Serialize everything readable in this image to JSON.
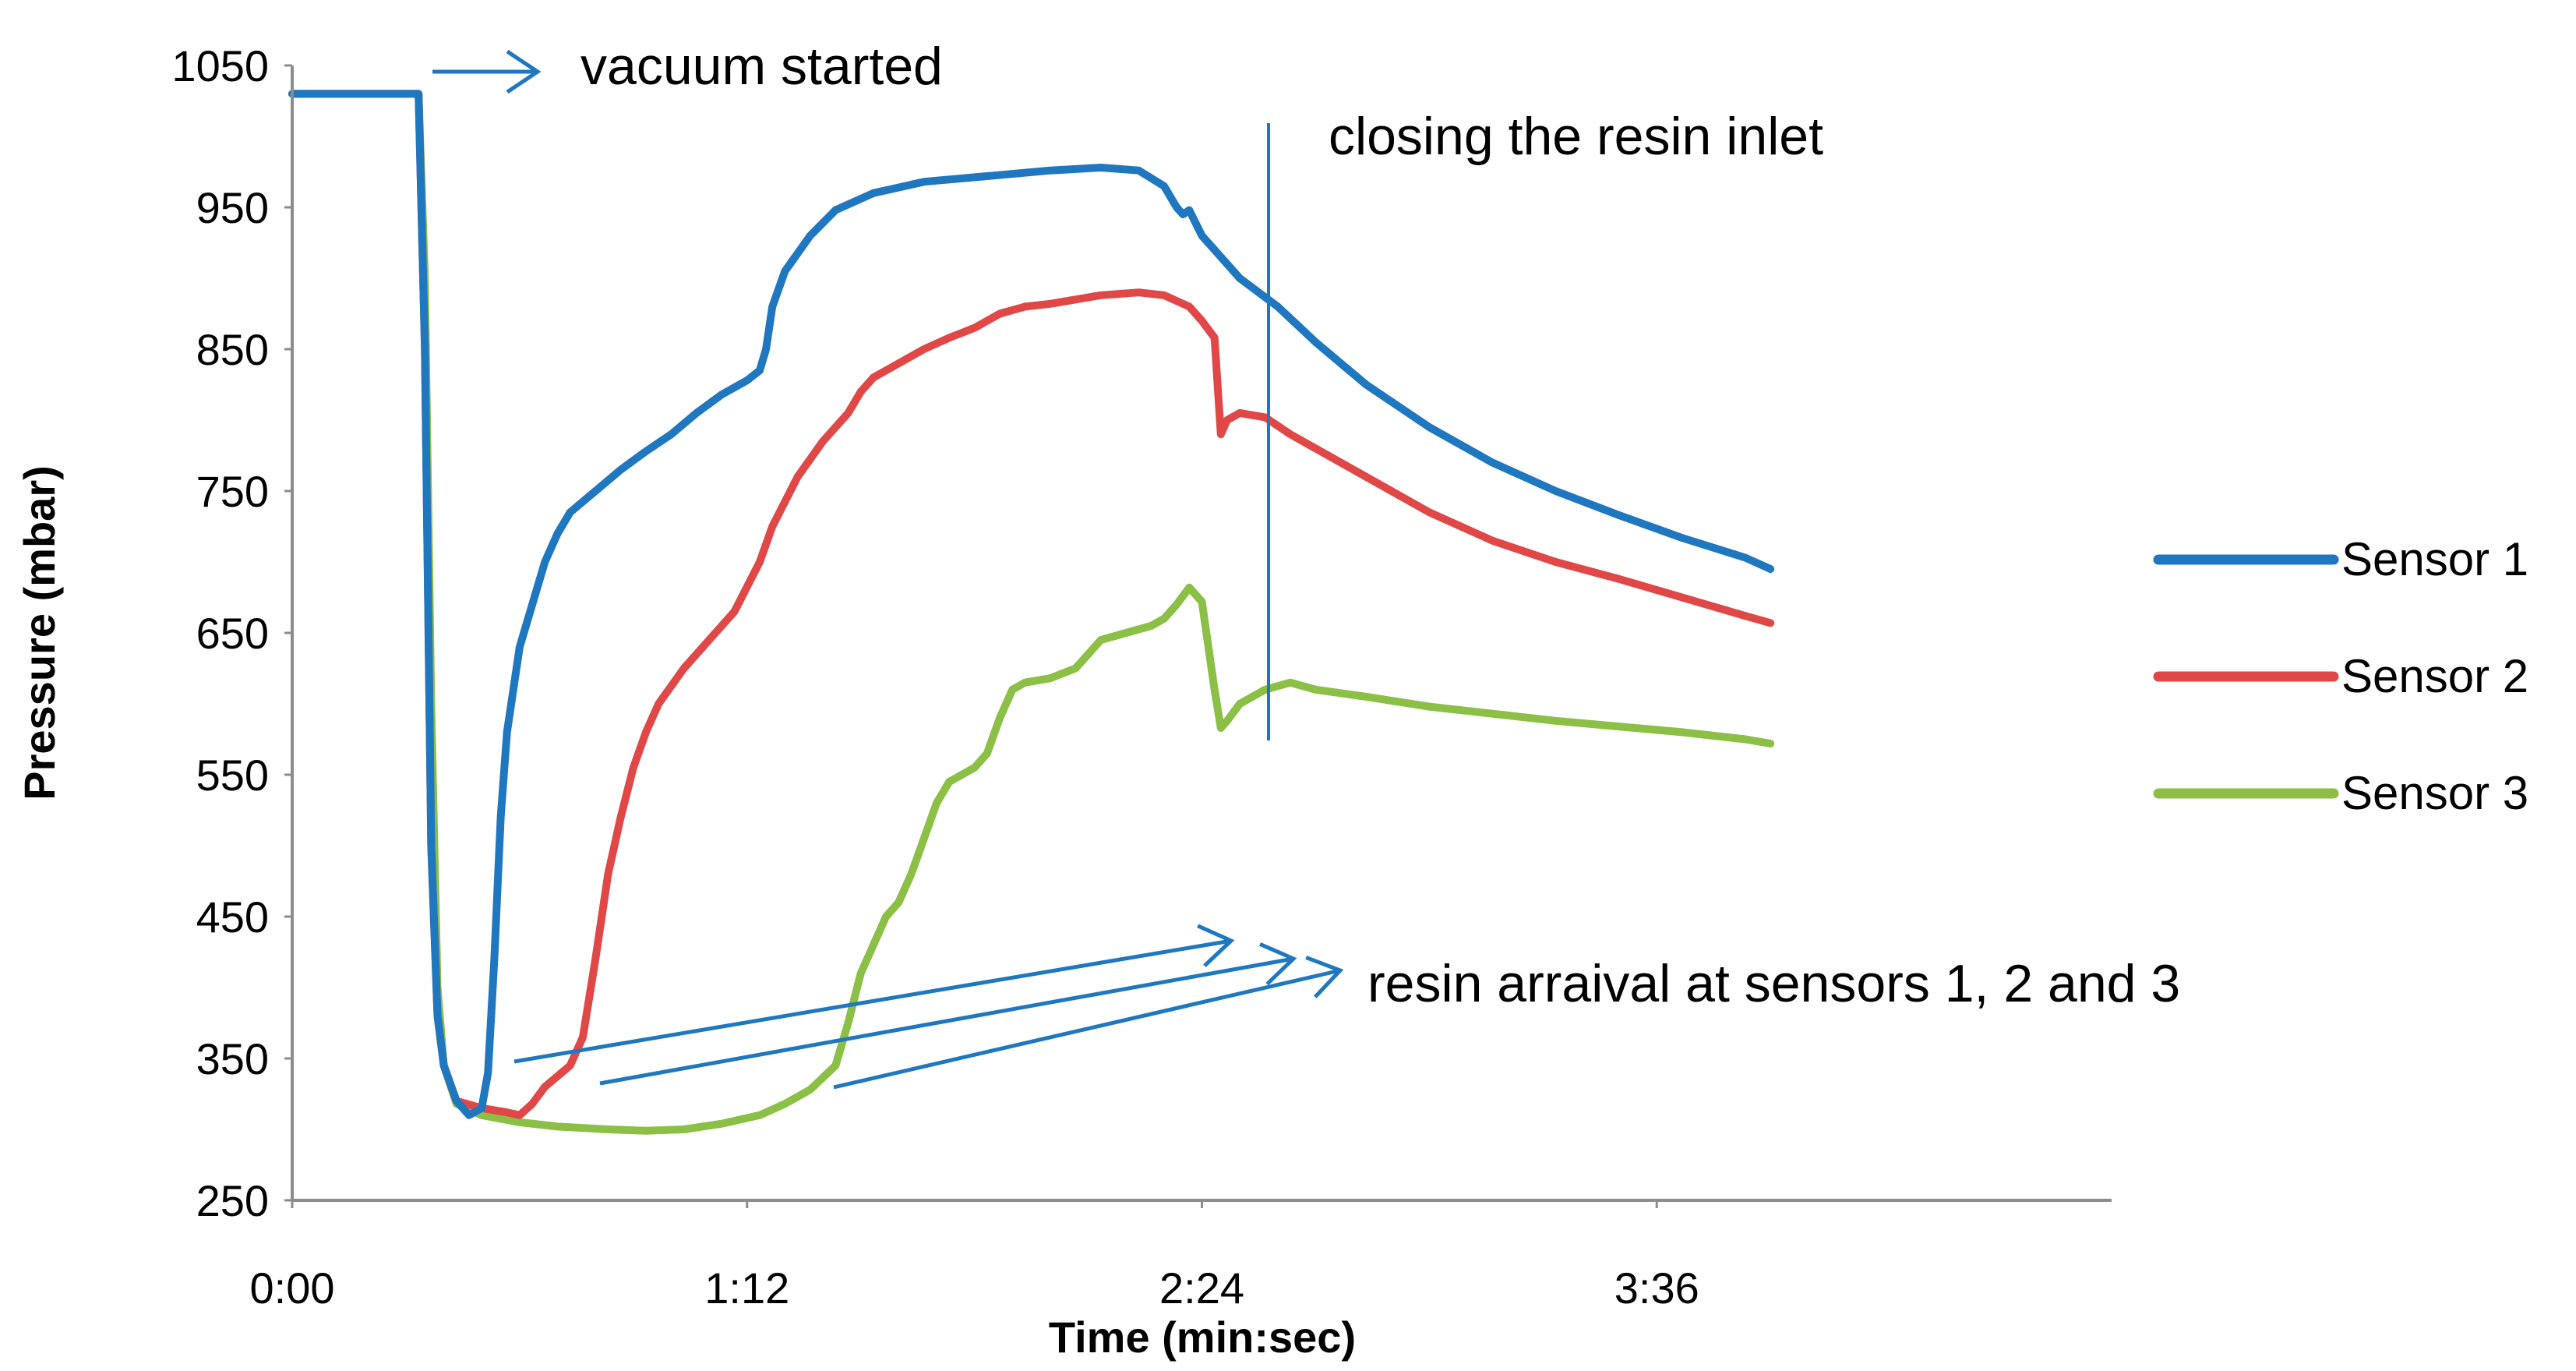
{
  "chart_data": {
    "type": "line",
    "title": "",
    "xlabel": "Time (min:sec)",
    "ylabel": "Pressure (mbar)",
    "xunit": "seconds",
    "xlim": [
      0,
      288
    ],
    "ylim": [
      250,
      1050
    ],
    "yticks": [
      250,
      350,
      450,
      550,
      650,
      750,
      850,
      950,
      1050
    ],
    "xticks": [
      {
        "value": 0,
        "label": "0:00"
      },
      {
        "value": 72,
        "label": "1:12"
      },
      {
        "value": 144,
        "label": "2:24"
      },
      {
        "value": 216,
        "label": "3:36"
      }
    ],
    "grid": false,
    "legend_position": "right",
    "series": [
      {
        "name": "Sensor 1",
        "color": "#1F77C0",
        "points": [
          [
            0,
            1030
          ],
          [
            20,
            1030
          ],
          [
            21,
            850
          ],
          [
            22,
            500
          ],
          [
            23,
            380
          ],
          [
            24,
            345
          ],
          [
            26,
            320
          ],
          [
            28,
            310
          ],
          [
            30,
            315
          ],
          [
            31,
            340
          ],
          [
            32,
            420
          ],
          [
            33,
            520
          ],
          [
            34,
            580
          ],
          [
            35,
            610
          ],
          [
            36,
            640
          ],
          [
            38,
            670
          ],
          [
            40,
            700
          ],
          [
            42,
            720
          ],
          [
            44,
            735
          ],
          [
            48,
            750
          ],
          [
            52,
            765
          ],
          [
            56,
            778
          ],
          [
            60,
            790
          ],
          [
            64,
            805
          ],
          [
            68,
            818
          ],
          [
            72,
            828
          ],
          [
            74,
            835
          ],
          [
            75,
            850
          ],
          [
            76,
            880
          ],
          [
            78,
            905
          ],
          [
            82,
            930
          ],
          [
            86,
            948
          ],
          [
            92,
            960
          ],
          [
            100,
            968
          ],
          [
            110,
            972
          ],
          [
            120,
            976
          ],
          [
            128,
            978
          ],
          [
            134,
            976
          ],
          [
            138,
            965
          ],
          [
            140,
            950
          ],
          [
            141,
            945
          ],
          [
            142,
            948
          ],
          [
            144,
            930
          ],
          [
            146,
            920
          ],
          [
            150,
            900
          ],
          [
            156,
            880
          ],
          [
            162,
            855
          ],
          [
            170,
            825
          ],
          [
            180,
            795
          ],
          [
            190,
            770
          ],
          [
            200,
            750
          ],
          [
            210,
            733
          ],
          [
            220,
            717
          ],
          [
            230,
            703
          ],
          [
            234,
            695
          ]
        ]
      },
      {
        "name": "Sensor 2",
        "color": "#E04848",
        "points": [
          [
            0,
            1030
          ],
          [
            20,
            1030
          ],
          [
            21,
            850
          ],
          [
            22,
            500
          ],
          [
            23,
            380
          ],
          [
            24,
            345
          ],
          [
            26,
            320
          ],
          [
            30,
            315
          ],
          [
            34,
            312
          ],
          [
            36,
            310
          ],
          [
            38,
            318
          ],
          [
            40,
            330
          ],
          [
            44,
            345
          ],
          [
            46,
            365
          ],
          [
            48,
            420
          ],
          [
            50,
            480
          ],
          [
            52,
            520
          ],
          [
            54,
            555
          ],
          [
            56,
            580
          ],
          [
            58,
            600
          ],
          [
            62,
            625
          ],
          [
            66,
            645
          ],
          [
            70,
            665
          ],
          [
            74,
            700
          ],
          [
            76,
            725
          ],
          [
            80,
            760
          ],
          [
            84,
            785
          ],
          [
            88,
            805
          ],
          [
            90,
            820
          ],
          [
            92,
            830
          ],
          [
            96,
            840
          ],
          [
            100,
            850
          ],
          [
            104,
            858
          ],
          [
            108,
            865
          ],
          [
            112,
            875
          ],
          [
            116,
            880
          ],
          [
            120,
            882
          ],
          [
            124,
            885
          ],
          [
            128,
            888
          ],
          [
            134,
            890
          ],
          [
            138,
            888
          ],
          [
            142,
            880
          ],
          [
            144,
            870
          ],
          [
            146,
            858
          ],
          [
            147,
            790
          ],
          [
            148,
            800
          ],
          [
            150,
            805
          ],
          [
            154,
            802
          ],
          [
            158,
            790
          ],
          [
            164,
            775
          ],
          [
            172,
            755
          ],
          [
            180,
            735
          ],
          [
            190,
            715
          ],
          [
            200,
            700
          ],
          [
            210,
            688
          ],
          [
            220,
            675
          ],
          [
            230,
            662
          ],
          [
            234,
            657
          ]
        ]
      },
      {
        "name": "Sensor 3",
        "color": "#8BBF45",
        "points": [
          [
            0,
            1030
          ],
          [
            20,
            1030
          ],
          [
            21,
            900
          ],
          [
            22,
            600
          ],
          [
            23,
            400
          ],
          [
            24,
            345
          ],
          [
            26,
            318
          ],
          [
            30,
            310
          ],
          [
            36,
            305
          ],
          [
            42,
            302
          ],
          [
            50,
            300
          ],
          [
            56,
            299
          ],
          [
            62,
            300
          ],
          [
            68,
            304
          ],
          [
            74,
            310
          ],
          [
            78,
            318
          ],
          [
            82,
            328
          ],
          [
            86,
            345
          ],
          [
            88,
            375
          ],
          [
            90,
            410
          ],
          [
            92,
            430
          ],
          [
            94,
            450
          ],
          [
            96,
            460
          ],
          [
            98,
            480
          ],
          [
            100,
            505
          ],
          [
            102,
            530
          ],
          [
            104,
            545
          ],
          [
            108,
            555
          ],
          [
            110,
            565
          ],
          [
            112,
            590
          ],
          [
            114,
            610
          ],
          [
            116,
            615
          ],
          [
            120,
            618
          ],
          [
            124,
            625
          ],
          [
            126,
            635
          ],
          [
            128,
            645
          ],
          [
            132,
            650
          ],
          [
            136,
            655
          ],
          [
            138,
            660
          ],
          [
            140,
            670
          ],
          [
            142,
            682
          ],
          [
            144,
            672
          ],
          [
            146,
            610
          ],
          [
            147,
            583
          ],
          [
            148,
            588
          ],
          [
            150,
            600
          ],
          [
            154,
            610
          ],
          [
            158,
            615
          ],
          [
            162,
            610
          ],
          [
            170,
            605
          ],
          [
            180,
            598
          ],
          [
            190,
            593
          ],
          [
            200,
            588
          ],
          [
            210,
            584
          ],
          [
            220,
            580
          ],
          [
            230,
            575
          ],
          [
            234,
            572
          ]
        ]
      }
    ],
    "annotations": [
      {
        "text": "vacuum started"
      },
      {
        "text": "closing the resin inlet"
      },
      {
        "text": "resin arraival at sensors 1, 2 and 3"
      }
    ]
  }
}
